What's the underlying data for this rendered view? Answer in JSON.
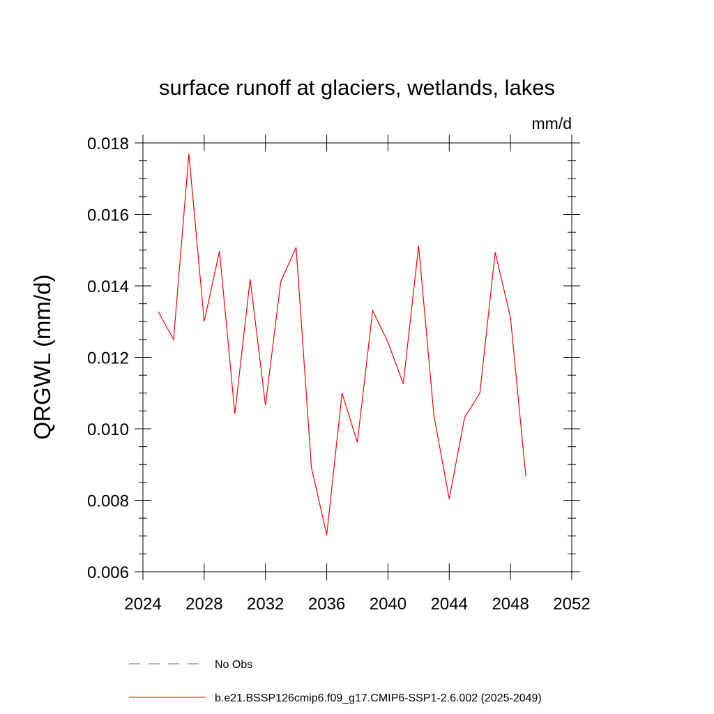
{
  "chart_data": {
    "type": "line",
    "title": "surface runoff at glaciers, wetlands, lakes",
    "units": "mm/d",
    "ylabel": "QRGWL  (mm/d)",
    "xlabel": "",
    "xlim": [
      2024,
      2052
    ],
    "ylim": [
      0.006,
      0.018
    ],
    "x_ticks": [
      2024,
      2028,
      2032,
      2036,
      2040,
      2044,
      2048,
      2052
    ],
    "x_tick_labels": [
      "2024",
      "2028",
      "2032",
      "2036",
      "2040",
      "2044",
      "2048",
      "2052"
    ],
    "y_ticks": [
      0.006,
      0.008,
      0.01,
      0.012,
      0.014,
      0.016,
      0.018
    ],
    "y_tick_labels": [
      "0.006",
      "0.008",
      "0.010",
      "0.012",
      "0.014",
      "0.016",
      "0.018"
    ],
    "grid": false,
    "legend_position": "bottom",
    "series": [
      {
        "name": "b.e21.BSSP126cmip6.f09_g17.CMIP6-SSP1-2.6.002 (2025-2049)",
        "color": "#ff0000",
        "dash": "solid",
        "x": [
          2025,
          2026,
          2027,
          2028,
          2029,
          2030,
          2031,
          2032,
          2033,
          2034,
          2035,
          2036,
          2037,
          2038,
          2039,
          2040,
          2041,
          2042,
          2043,
          2044,
          2045,
          2046,
          2047,
          2048,
          2049
        ],
        "y": [
          0.01328,
          0.0125,
          0.0177,
          0.013,
          0.01498,
          0.01042,
          0.01419,
          0.01066,
          0.01412,
          0.01508,
          0.00892,
          0.00703,
          0.011,
          0.00962,
          0.01331,
          0.01242,
          0.01126,
          0.01512,
          0.01037,
          0.00804,
          0.01031,
          0.011,
          0.01494,
          0.01311,
          0.00866
        ]
      }
    ],
    "legend": [
      {
        "label": "No Obs",
        "color": "#6a5acd",
        "dash": "dashed"
      },
      {
        "label": "b.e21.BSSP126cmip6.f09_g17.CMIP6-SSP1-2.6.002 (2025-2049)",
        "color": "#ff0000",
        "dash": "solid"
      }
    ]
  }
}
